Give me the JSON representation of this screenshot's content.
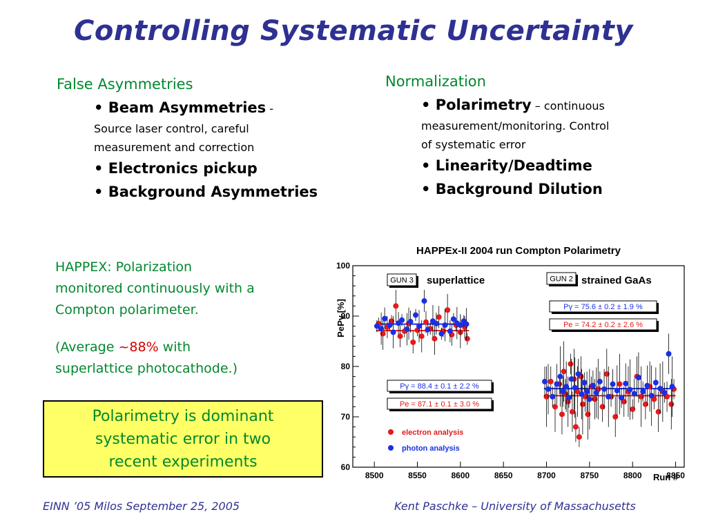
{
  "title": "Controlling Systematic Uncertainty",
  "left_column": {
    "heading": "False Asymmetries",
    "item1_head": "Beam Asymmetries",
    "item1_dash": " -",
    "item1_line2": "Source laser control, careful",
    "item1_line3": "measurement and correction",
    "item2": "Electronics pickup",
    "item3": "Background Asymmetries"
  },
  "right_column": {
    "heading": "Normalization",
    "item1_head": "Polarimetry",
    "item1_dash": " – ",
    "item1_tail": "continuous",
    "item1_line2": "measurement/monitoring. Control",
    "item1_line3": "of systematic error",
    "item2": "Linearity/Deadtime",
    "item3": "Background Dilution"
  },
  "happex_text": {
    "line1": "HAPPEX: Polarization",
    "line2": "monitored continuously with a",
    "line3": "Compton polarimeter.",
    "avg_pre": "(Average ",
    "avg_value": "~88%",
    "avg_post": " with",
    "avg_line2": "superlattice photocathode.)"
  },
  "callout": {
    "line1": "Polarimetry is dominant",
    "line2": "systematic error in two",
    "line3": "recent experiments"
  },
  "footer": {
    "left": "EINN ’05  Milos  September 25, 2005",
    "right": "Kent Paschke – University of Massachusetts"
  },
  "colors": {
    "title": "#2e3192",
    "green_text": "#00882e",
    "highlight_red": "#d40000",
    "callout_bg": "#ffff66",
    "electron": "#e41a1c",
    "photon": "#1a2fe4"
  },
  "chart_data": {
    "type": "scatter",
    "title": "HAPPEx-II 2004 run  Compton Polarimetry",
    "xlabel": "Run #",
    "ylabel": "PePγ  [%]",
    "xlim": [
      8475,
      8860
    ],
    "ylim": [
      60,
      100
    ],
    "x_ticks": [
      8500,
      8550,
      8600,
      8650,
      8700,
      8750,
      8800,
      8850
    ],
    "y_ticks": [
      60,
      70,
      80,
      90,
      100
    ],
    "legend": {
      "placement": "bottom-left",
      "entries": [
        "electron analysis",
        "photon analysis"
      ]
    },
    "groups": [
      {
        "gun_label": "GUN 3",
        "cathode_label": "superlattice",
        "photon_fit": {
          "label": "Pγ = 88.4 ± 0.1 ± 2.2 %",
          "value": 88.4,
          "x_range": [
            8502,
            8610
          ]
        },
        "electron_fit": {
          "label": "Pe = 87.1 ± 0.1 ± 3.0 %",
          "value": 87.1,
          "x_range": [
            8502,
            8610
          ]
        }
      },
      {
        "gun_label": "GUN 2",
        "cathode_label": "strained GaAs",
        "photon_fit": {
          "label": "Pγ = 75.6 ± 0.2 ± 1.9 %",
          "value": 75.6,
          "x_range": [
            8697,
            8850
          ]
        },
        "electron_fit": {
          "label": "Pe = 74.2 ± 0.2 ± 2.6 %",
          "value": 74.2,
          "x_range": [
            8697,
            8850
          ]
        }
      }
    ],
    "series": [
      {
        "name": "electron analysis",
        "points": [
          [
            8505,
            88.5
          ],
          [
            8510,
            86.5
          ],
          [
            8515,
            87.8
          ],
          [
            8520,
            89
          ],
          [
            8525,
            92
          ],
          [
            8530,
            86
          ],
          [
            8535,
            87
          ],
          [
            8540,
            88.5
          ],
          [
            8545,
            84.8
          ],
          [
            8550,
            87.2
          ],
          [
            8555,
            86
          ],
          [
            8560,
            88.8
          ],
          [
            8565,
            87.5
          ],
          [
            8570,
            85.5
          ],
          [
            8575,
            89.8
          ],
          [
            8580,
            87
          ],
          [
            8585,
            91.2
          ],
          [
            8590,
            86.3
          ],
          [
            8595,
            88.2
          ],
          [
            8600,
            86.8
          ],
          [
            8605,
            87.8
          ],
          [
            8608,
            85.5
          ],
          [
            8700,
            74
          ],
          [
            8705,
            77
          ],
          [
            8710,
            72
          ],
          [
            8715,
            76.5
          ],
          [
            8718,
            70.5
          ],
          [
            8720,
            79
          ],
          [
            8722,
            74.5
          ],
          [
            8725,
            73
          ],
          [
            8728,
            80.5
          ],
          [
            8730,
            71
          ],
          [
            8732,
            77.5
          ],
          [
            8734,
            68
          ],
          [
            8736,
            75
          ],
          [
            8738,
            66
          ],
          [
            8740,
            78
          ],
          [
            8742,
            72.5
          ],
          [
            8745,
            74
          ],
          [
            8748,
            70.5
          ],
          [
            8752,
            76
          ],
          [
            8756,
            73.5
          ],
          [
            8760,
            75.5
          ],
          [
            8765,
            72
          ],
          [
            8770,
            78.5
          ],
          [
            8775,
            74
          ],
          [
            8780,
            70
          ],
          [
            8785,
            76.5
          ],
          [
            8790,
            73
          ],
          [
            8795,
            75
          ],
          [
            8800,
            71.5
          ],
          [
            8805,
            78
          ],
          [
            8810,
            74
          ],
          [
            8815,
            72.5
          ],
          [
            8820,
            76
          ],
          [
            8825,
            73.5
          ],
          [
            8830,
            71
          ],
          [
            8835,
            75
          ],
          [
            8840,
            74
          ],
          [
            8845,
            72.5
          ],
          [
            8848,
            75.5
          ]
        ]
      },
      {
        "name": "photon analysis",
        "points": [
          [
            8503,
            88
          ],
          [
            8508,
            87.5
          ],
          [
            8512,
            89.5
          ],
          [
            8518,
            88.2
          ],
          [
            8522,
            86.8
          ],
          [
            8528,
            88.6
          ],
          [
            8532,
            89.2
          ],
          [
            8538,
            87.4
          ],
          [
            8542,
            88.9
          ],
          [
            8548,
            90.2
          ],
          [
            8552,
            88
          ],
          [
            8558,
            93
          ],
          [
            8562,
            87.3
          ],
          [
            8568,
            89
          ],
          [
            8572,
            88.5
          ],
          [
            8578,
            86.5
          ],
          [
            8582,
            88.2
          ],
          [
            8588,
            87
          ],
          [
            8592,
            89.4
          ],
          [
            8596,
            88.6
          ],
          [
            8600,
            88.2
          ],
          [
            8604,
            89
          ],
          [
            8607,
            88.4
          ],
          [
            8698,
            77
          ],
          [
            8702,
            75.5
          ],
          [
            8707,
            74
          ],
          [
            8712,
            76.5
          ],
          [
            8716,
            78
          ],
          [
            8719,
            75
          ],
          [
            8723,
            76
          ],
          [
            8726,
            73.8
          ],
          [
            8729,
            77.5
          ],
          [
            8733,
            75.8
          ],
          [
            8737,
            78.5
          ],
          [
            8741,
            74.5
          ],
          [
            8744,
            76.8
          ],
          [
            8747,
            75
          ],
          [
            8750,
            73.5
          ],
          [
            8754,
            76.2
          ],
          [
            8758,
            74.8
          ],
          [
            8762,
            77
          ],
          [
            8767,
            75.5
          ],
          [
            8772,
            74
          ],
          [
            8777,
            76.5
          ],
          [
            8782,
            75.2
          ],
          [
            8787,
            73.8
          ],
          [
            8792,
            76.6
          ],
          [
            8797,
            75.4
          ],
          [
            8802,
            74.6
          ],
          [
            8807,
            77.8
          ],
          [
            8812,
            75
          ],
          [
            8817,
            76.2
          ],
          [
            8822,
            74.2
          ],
          [
            8827,
            76.8
          ],
          [
            8832,
            75.6
          ],
          [
            8837,
            74.8
          ],
          [
            8842,
            82.5
          ],
          [
            8846,
            76
          ]
        ]
      }
    ]
  }
}
